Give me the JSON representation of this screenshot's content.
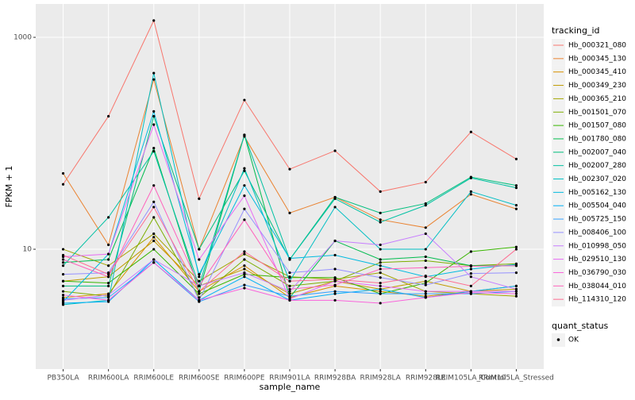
{
  "chart_data": {
    "type": "line",
    "x_label": "sample_name",
    "y_label": "FPKM + 1",
    "log_scale": true,
    "grid": true,
    "categories": [
      "PB350LA",
      "RRIM600LA",
      "RRIM600LE",
      "RRIM600SE",
      "RRIM600PE",
      "RRIM901LA",
      "RRIM928BA",
      "RRIM928LA",
      "RRIM928LE",
      "RRIM105LA_Control",
      "RRIM105LA_Stressed"
    ],
    "ylim": [
      0.74,
      2065
    ],
    "yticks": [
      10,
      1000
    ],
    "legend_title": "tracking_id",
    "legend_position": "right",
    "status_legend": {
      "title": "quant_status",
      "labels": [
        "OK"
      ]
    },
    "series": [
      {
        "name": "Hb_000321_080",
        "color": "#F8766D",
        "values": [
          41,
          180,
          1440,
          30,
          256,
          57,
          85,
          35,
          43,
          128,
          71
        ]
      },
      {
        "name": "Hb_000345_130",
        "color": "#EA8331",
        "values": [
          52,
          11,
          400,
          10,
          116,
          22,
          31,
          19,
          16,
          33,
          24
        ]
      },
      {
        "name": "Hb_000345_410",
        "color": "#D89000",
        "values": [
          3.5,
          3.8,
          13,
          4,
          7,
          3.5,
          4.5,
          4,
          3.6,
          4,
          4.5
        ]
      },
      {
        "name": "Hb_000349_230",
        "color": "#C09B00",
        "values": [
          5,
          5.5,
          12,
          4.5,
          6.5,
          3.8,
          5,
          4.2,
          5,
          4,
          4.2
        ]
      },
      {
        "name": "Hb_000365_210",
        "color": "#A3A500",
        "values": [
          10,
          7,
          14,
          5,
          9,
          5.5,
          5.2,
          6,
          4,
          3.8,
          3.6
        ]
      },
      {
        "name": "Hb_001501_070",
        "color": "#7CAE00",
        "values": [
          4,
          3.6,
          20,
          3.5,
          8,
          4.5,
          5,
          7.5,
          7.8,
          7,
          7.3
        ]
      },
      {
        "name": "Hb_001507_080",
        "color": "#39B600",
        "values": [
          5,
          4.8,
          10,
          3.8,
          5.8,
          5.4,
          5.4,
          3.8,
          4.8,
          9.5,
          10.5
        ]
      },
      {
        "name": "Hb_001780_080",
        "color": "#00BB4E",
        "values": [
          7.5,
          8,
          90,
          4,
          120,
          3.5,
          12,
          8,
          8.5,
          7,
          7
        ]
      },
      {
        "name": "Hb_002007_040",
        "color": "#00BF7D",
        "values": [
          4.5,
          4.5,
          180,
          10,
          55,
          8,
          31,
          22,
          27,
          48,
          40
        ]
      },
      {
        "name": "Hb_002007_280",
        "color": "#00C1A3",
        "values": [
          7,
          20,
          84,
          4.5,
          120,
          8,
          30,
          18,
          26,
          47,
          38
        ]
      },
      {
        "name": "Hb_002307_020",
        "color": "#00BFC4",
        "values": [
          3,
          3.3,
          460,
          5.5,
          58,
          5,
          25,
          10,
          10,
          35,
          26
        ]
      },
      {
        "name": "Hb_005162_130",
        "color": "#00BAE0",
        "values": [
          3.2,
          9,
          200,
          5.8,
          40,
          8.2,
          8.8,
          7,
          5.5,
          6.5,
          7.2
        ]
      },
      {
        "name": "Hb_005504_040",
        "color": "#00B0F6",
        "values": [
          3.1,
          3.2,
          8,
          3.3,
          5.5,
          3.3,
          3.8,
          4.2,
          3.5,
          4,
          4.5
        ]
      },
      {
        "name": "Hb_005725_150",
        "color": "#35A2FF",
        "values": [
          3.4,
          3.5,
          7.5,
          3.2,
          4.6,
          3.6,
          4,
          3.8,
          3.8,
          3.8,
          4
        ]
      },
      {
        "name": "Hb_008406_100",
        "color": "#9590FF",
        "values": [
          5.8,
          6,
          28,
          3.3,
          24,
          6,
          6.5,
          5.4,
          4.6,
          5.9,
          6
        ]
      },
      {
        "name": "Hb_010998_050",
        "color": "#C77CFF",
        "values": [
          3.3,
          3.7,
          8,
          4.5,
          6,
          4,
          12,
          11,
          14,
          5.5,
          4.2
        ]
      },
      {
        "name": "Hb_029510_130",
        "color": "#E76BF3",
        "values": [
          8.5,
          9,
          150,
          8,
          32,
          3.4,
          5,
          4.5,
          4,
          4,
          4
        ]
      },
      {
        "name": "Hb_036790_030",
        "color": "#FA62DB",
        "values": [
          3.7,
          3.3,
          7.5,
          3.3,
          4.3,
          3.3,
          3.3,
          3.1,
          3.5,
          3.9,
          3.8
        ]
      },
      {
        "name": "Hb_038044_010",
        "color": "#FF62BC",
        "values": [
          8,
          5.5,
          40,
          4.5,
          19,
          4.2,
          4.6,
          6.5,
          6.7,
          6.9,
          7
        ]
      },
      {
        "name": "Hb_114310_120",
        "color": "#FF6C91",
        "values": [
          8.8,
          5.8,
          25,
          4,
          9.5,
          5,
          5.2,
          4.8,
          5.6,
          4.5,
          10
        ]
      }
    ]
  }
}
